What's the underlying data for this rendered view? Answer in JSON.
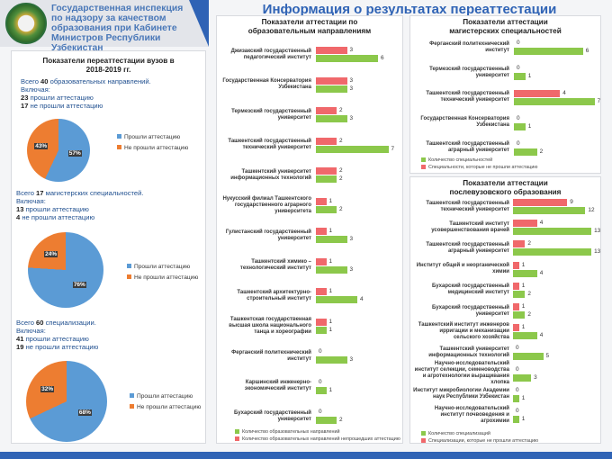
{
  "header": {
    "org": "Государственная инспекция по надзору за качеством образования при Кабинете Министров Республики Узбекистан",
    "title": "Информация о результатах переаттестации"
  },
  "colors": {
    "blue": "#5b9bd5",
    "orange": "#ed7d31",
    "red": "#f0686b",
    "green": "#8cc84b"
  },
  "left": {
    "title": "Показатели переаттестации вузов в 2018-2019 гг.",
    "blocks": [
      {
        "l1n": "40",
        "l1": " образовательных направлений.",
        "l2": "Включая:",
        "passed_n": "23",
        "passed": " прошли аттестацию",
        "failed_n": "17",
        "failed": " не прошли аттестацию",
        "prefix": "Всего ",
        "pct_pass": 57,
        "pct_fail": 43,
        "pass_label": "57%",
        "fail_label": "43%",
        "legend": [
          "Прошли аттестацию",
          "Не прошли аттестацию"
        ]
      },
      {
        "l1n": "17",
        "l1": " магистерских специальностей.",
        "l2": "Включая:",
        "passed_n": "13",
        "passed": " прошли аттестацию",
        "failed_n": "4",
        "failed": " не прошли аттестацию",
        "prefix": "Всего ",
        "pct_pass": 76,
        "pct_fail": 24,
        "pass_label": "76%",
        "fail_label": "24%",
        "legend": [
          "Прошли аттестацию",
          "Не прошли аттестацию"
        ]
      },
      {
        "l1n": "60",
        "l1": " специализации.",
        "l2": "Включая:",
        "passed_n": "41",
        "passed": " прошли аттестацию",
        "failed_n": "19",
        "failed": " не прошли аттестацию",
        "prefix": "Всего ",
        "pct_pass": 68,
        "pct_fail": 32,
        "pass_label": "68%",
        "fail_label": "32%",
        "legend": [
          "Прошли аттестацию",
          "Не прошли аттестацию"
        ]
      }
    ]
  },
  "chart_data": [
    {
      "type": "bar",
      "title": "Показатели аттестации по образовательным направлениям",
      "categories": [
        "Джизакский государственный педагогический институт",
        "Государственная Консерватория Узбекистана",
        "Термезский государственный университет",
        "Ташкентский государственный технический университет",
        "Ташкентский университет информационных технологий",
        "Нукусский филиал Ташкентского государственного аграрного университета",
        "Гулистанский государственный университет",
        "Ташкентский химико – технологический институт",
        "Ташкентский архитектурно-строительный институт",
        "Ташкентская государственная высшая школа национального танца и хореографии",
        "Ферганский политехнический институт",
        "Каршинский инженерно-экономический институт",
        "Бухарский государственный университет"
      ],
      "series": [
        {
          "name": "Количество образовательных направлений непрошедших аттестацию",
          "values": [
            3,
            3,
            2,
            2,
            2,
            1,
            1,
            1,
            1,
            1,
            0,
            0,
            0
          ]
        },
        {
          "name": "Количество образовательных направлений",
          "values": [
            6,
            3,
            3,
            7,
            2,
            2,
            3,
            3,
            4,
            1,
            3,
            1,
            2
          ]
        }
      ],
      "legend": [
        "Количество образовательных направлений",
        "Количество образовательных направлений непрошедших аттестацию"
      ]
    },
    {
      "type": "bar",
      "title": "Показатели аттестации магистерских специальностей",
      "categories": [
        "Ферганский политехнический институт",
        "Термезский государственный университет",
        "Ташкентский государственный технический университет",
        "Государственная Консерватория Узбекистана",
        "Ташкентский государственный аграрный университет"
      ],
      "series": [
        {
          "name": "Специальности, которые не прошли аттестацию",
          "values": [
            0,
            0,
            4,
            0,
            0
          ]
        },
        {
          "name": "Количество специальностей",
          "values": [
            6,
            1,
            7,
            1,
            2
          ]
        }
      ],
      "legend": [
        "Количество специальностей",
        "Специальности, которые не прошли аттестацию"
      ]
    },
    {
      "type": "bar",
      "title": "Показатели аттестации послевузовского образования",
      "categories": [
        "Ташкентский государственный технический университет",
        "Ташкентский институт усовершенствования врачей",
        "Ташкентский государственный аграрный университет",
        "Институт общей и неорганической химии",
        "Бухарский государственный медицинский институт",
        "Бухарский государственный университет",
        "Ташкентский институт инженеров ирригации и механизации сельского хозяйства",
        "Ташкентский университет информационных технологий",
        "Научно-исследовательский институт селекции, семеноводства и агротехнологии выращивания хлопка",
        "Институт микробиологии Академии наук Республики Узбекистан",
        "Научно-исследовательский институт почвоведения и агрохимии"
      ],
      "series": [
        {
          "name": "Специализации, которые не прошли аттестацию",
          "values": [
            9,
            4,
            2,
            1,
            1,
            1,
            1,
            0,
            0,
            0,
            0
          ]
        },
        {
          "name": "Количество специализаций",
          "values": [
            12,
            13,
            13,
            4,
            2,
            2,
            4,
            5,
            3,
            1,
            1
          ]
        }
      ],
      "legend": [
        "Количество специализаций",
        "Специализации, которые не прошли аттестацию"
      ]
    }
  ]
}
